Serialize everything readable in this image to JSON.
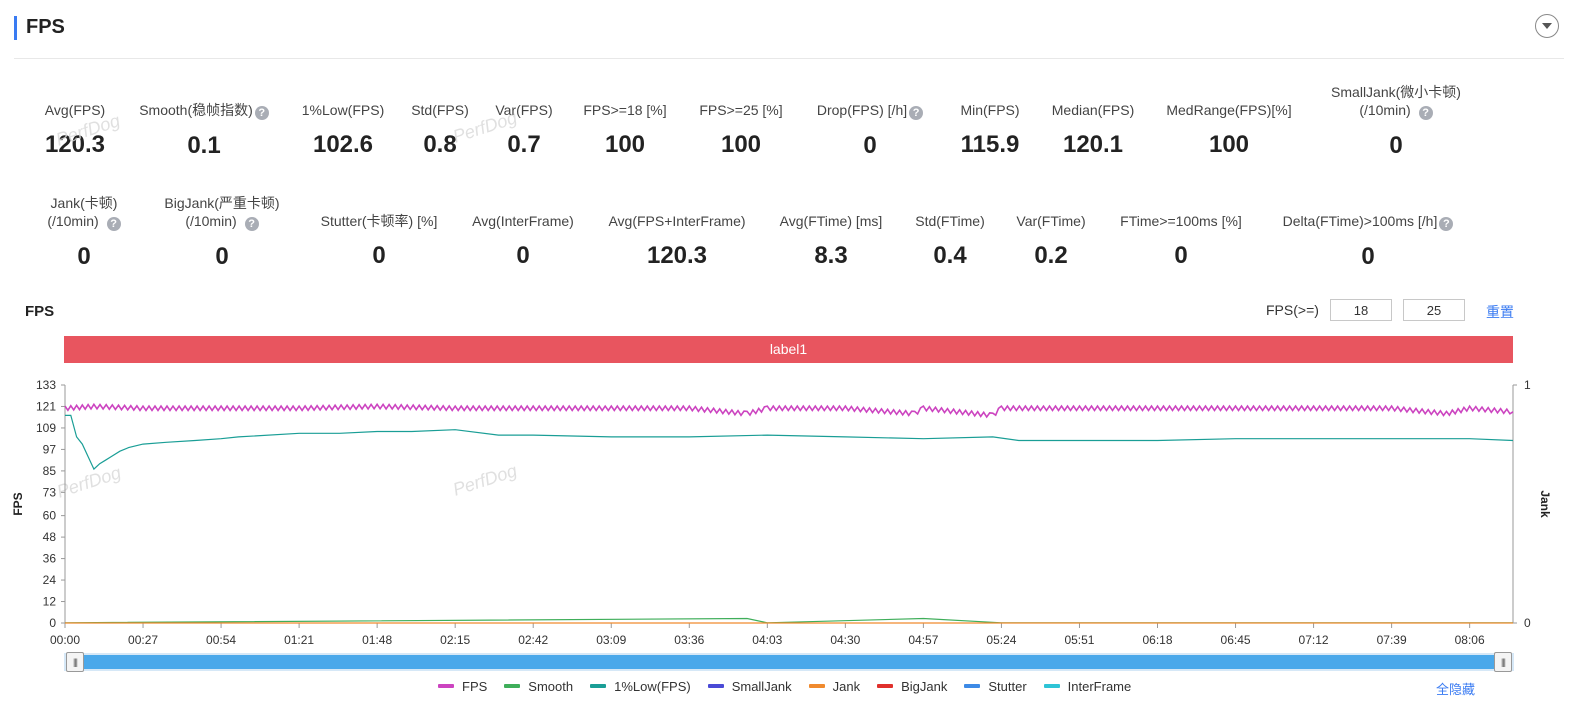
{
  "header": {
    "title": "FPS"
  },
  "metrics_row1": [
    {
      "label": "Avg(FPS)",
      "value": "120.3",
      "help": false
    },
    {
      "label": "Smooth(稳帧指数)",
      "value": "0.1",
      "help": true
    },
    {
      "label": "1%Low(FPS)",
      "value": "102.6",
      "help": false
    },
    {
      "label": "Std(FPS)",
      "value": "0.8",
      "help": false
    },
    {
      "label": "Var(FPS)",
      "value": "0.7",
      "help": false
    },
    {
      "label": "FPS>=18 [%]",
      "value": "100",
      "help": false
    },
    {
      "label": "FPS>=25 [%]",
      "value": "100",
      "help": false
    },
    {
      "label": "Drop(FPS) [/h]",
      "value": "0",
      "help": true
    },
    {
      "label": "Min(FPS)",
      "value": "115.9",
      "help": false
    },
    {
      "label": "Median(FPS)",
      "value": "120.1",
      "help": false
    },
    {
      "label": "MedRange(FPS)[%]",
      "value": "100",
      "help": false
    },
    {
      "label": "SmallJank(微小卡顿)",
      "label2": "(/10min)",
      "value": "0",
      "help": true
    }
  ],
  "metrics_row2": [
    {
      "label": "Jank(卡顿)",
      "label2": "(/10min)",
      "value": "0",
      "help": true
    },
    {
      "label": "BigJank(严重卡顿)",
      "label2": "(/10min)",
      "value": "0",
      "help": true
    },
    {
      "label": "Stutter(卡顿率) [%]",
      "value": "0",
      "help": false
    },
    {
      "label": "Avg(InterFrame)",
      "value": "0",
      "help": false
    },
    {
      "label": "Avg(FPS+InterFrame)",
      "value": "120.3",
      "help": false
    },
    {
      "label": "Avg(FTime) [ms]",
      "value": "8.3",
      "help": false
    },
    {
      "label": "Std(FTime)",
      "value": "0.4",
      "help": false
    },
    {
      "label": "Var(FTime)",
      "value": "0.2",
      "help": false
    },
    {
      "label": "FTime>=100ms [%]",
      "value": "0",
      "help": false
    },
    {
      "label": "Delta(FTime)>100ms [/h]",
      "value": "0",
      "help": true
    }
  ],
  "watermark": "PerfDog",
  "chart_panel": {
    "title": "FPS",
    "threshold_label": "FPS(>=)",
    "threshold_1": "18",
    "threshold_2": "25",
    "reset": "重置",
    "label_band": "label1",
    "hide_all": "全隐藏"
  },
  "chart_data": {
    "type": "line",
    "ylabel": "FPS",
    "ylabel_right": "Jank",
    "ylim": [
      0,
      133
    ],
    "yticks": [
      "133",
      "121",
      "109",
      "97",
      "85",
      "73",
      "60",
      "48",
      "36",
      "24",
      "12",
      "0"
    ],
    "y2lim": [
      0,
      1
    ],
    "y2ticks": [
      "1",
      "0"
    ],
    "xticks": [
      "00:00",
      "00:27",
      "00:54",
      "01:21",
      "01:48",
      "02:15",
      "02:42",
      "03:09",
      "03:36",
      "04:03",
      "04:30",
      "04:57",
      "05:24",
      "05:51",
      "06:18",
      "06:45",
      "07:12",
      "07:39",
      "08:06"
    ],
    "grid": false,
    "legend_position": "bottom",
    "series": [
      {
        "name": "FPS",
        "color": "#cc44c0",
        "x": [
          "00:00",
          "00:10",
          "00:27",
          "00:54",
          "01:21",
          "01:48",
          "02:15",
          "02:42",
          "03:09",
          "03:36",
          "03:56",
          "04:03",
          "04:30",
          "04:54",
          "04:57",
          "05:21",
          "05:24",
          "05:51",
          "06:18",
          "06:45",
          "07:12",
          "07:39",
          "07:58",
          "08:06",
          "08:21"
        ],
        "values": [
          120,
          121,
          120,
          120,
          120,
          121,
          120,
          120,
          120,
          120,
          117,
          120,
          120,
          117,
          120,
          116,
          120,
          120,
          120,
          120,
          120,
          120,
          117,
          120,
          118
        ]
      },
      {
        "name": "Smooth",
        "color": "#3fae5a",
        "x": [
          "00:00",
          "03:56",
          "04:03",
          "04:57",
          "05:24",
          "08:21"
        ],
        "values": [
          0.1,
          2.5,
          0.1,
          2.5,
          0.1,
          0.1
        ]
      },
      {
        "name": "1%Low(FPS)",
        "color": "#1a9e96",
        "x": [
          "00:00",
          "00:02",
          "00:04",
          "00:06",
          "00:08",
          "00:10",
          "00:12",
          "00:14",
          "00:16",
          "00:19",
          "00:22",
          "00:27",
          "00:35",
          "00:45",
          "00:54",
          "01:00",
          "01:21",
          "01:35",
          "01:48",
          "02:00",
          "02:15",
          "02:30",
          "02:42",
          "03:09",
          "03:36",
          "04:03",
          "04:30",
          "04:57",
          "05:21",
          "05:30",
          "05:51",
          "06:18",
          "06:45",
          "07:12",
          "07:39",
          "08:06",
          "08:21"
        ],
        "values": [
          116,
          116,
          104,
          100,
          93,
          86,
          89,
          91,
          93,
          96,
          98,
          100,
          101,
          102,
          103,
          104,
          106,
          106,
          107,
          107,
          108,
          105,
          105,
          104,
          104,
          105,
          104,
          103,
          104,
          102,
          102,
          102,
          103,
          103,
          103,
          103,
          102
        ]
      },
      {
        "name": "SmallJank",
        "color": "#4a4ad6",
        "values": []
      },
      {
        "name": "Jank",
        "color": "#f08a2e",
        "x": [
          "00:00",
          "08:21"
        ],
        "values": [
          0,
          0
        ]
      },
      {
        "name": "BigJank",
        "color": "#e0302c",
        "values": []
      },
      {
        "name": "Stutter",
        "color": "#3d8ae6",
        "values": []
      },
      {
        "name": "InterFrame",
        "color": "#2ec4d6",
        "values": []
      }
    ]
  }
}
